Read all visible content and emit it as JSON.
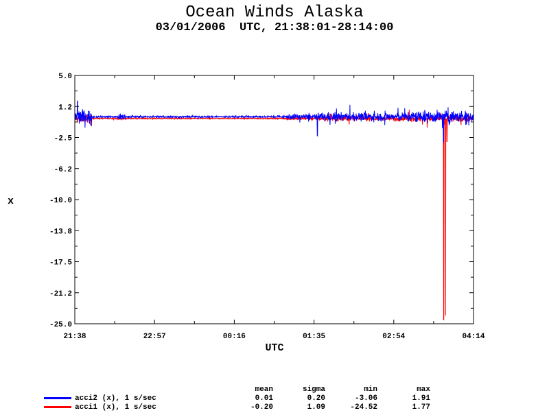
{
  "chart_data": {
    "type": "line",
    "title": "Ocean Winds Alaska",
    "subtitle": "03/01/2006  UTC, 21:38:01-28:14:00",
    "xlabel": "UTC",
    "ylabel": "x",
    "xlim": [
      0,
      396
    ],
    "ylim": [
      -25.0,
      5.0
    ],
    "x_ticks": [
      "21:38",
      "22:57",
      "00:16",
      "01:35",
      "02:54",
      "04:14"
    ],
    "y_ticks": [
      "5.0",
      "1.2",
      "-2.5",
      "-6.2",
      "-10.0",
      "-13.8",
      "-17.5",
      "-21.2",
      "-25.0"
    ],
    "series": [
      {
        "name": "acci2 (x), 1 s/sec",
        "color": "#0000ff",
        "stats": {
          "mean": "0.01",
          "sigma": "0.20",
          "min": "-3.06",
          "max": "1.91"
        }
      },
      {
        "name": "acci1 (x), 1 s/sec",
        "color": "#ff0000",
        "stats": {
          "mean": "-0.20",
          "sigma": "1.09",
          "min": "-24.52",
          "max": "1.77"
        }
      }
    ],
    "stat_headers": [
      "mean",
      "sigma",
      "min",
      "max"
    ]
  }
}
